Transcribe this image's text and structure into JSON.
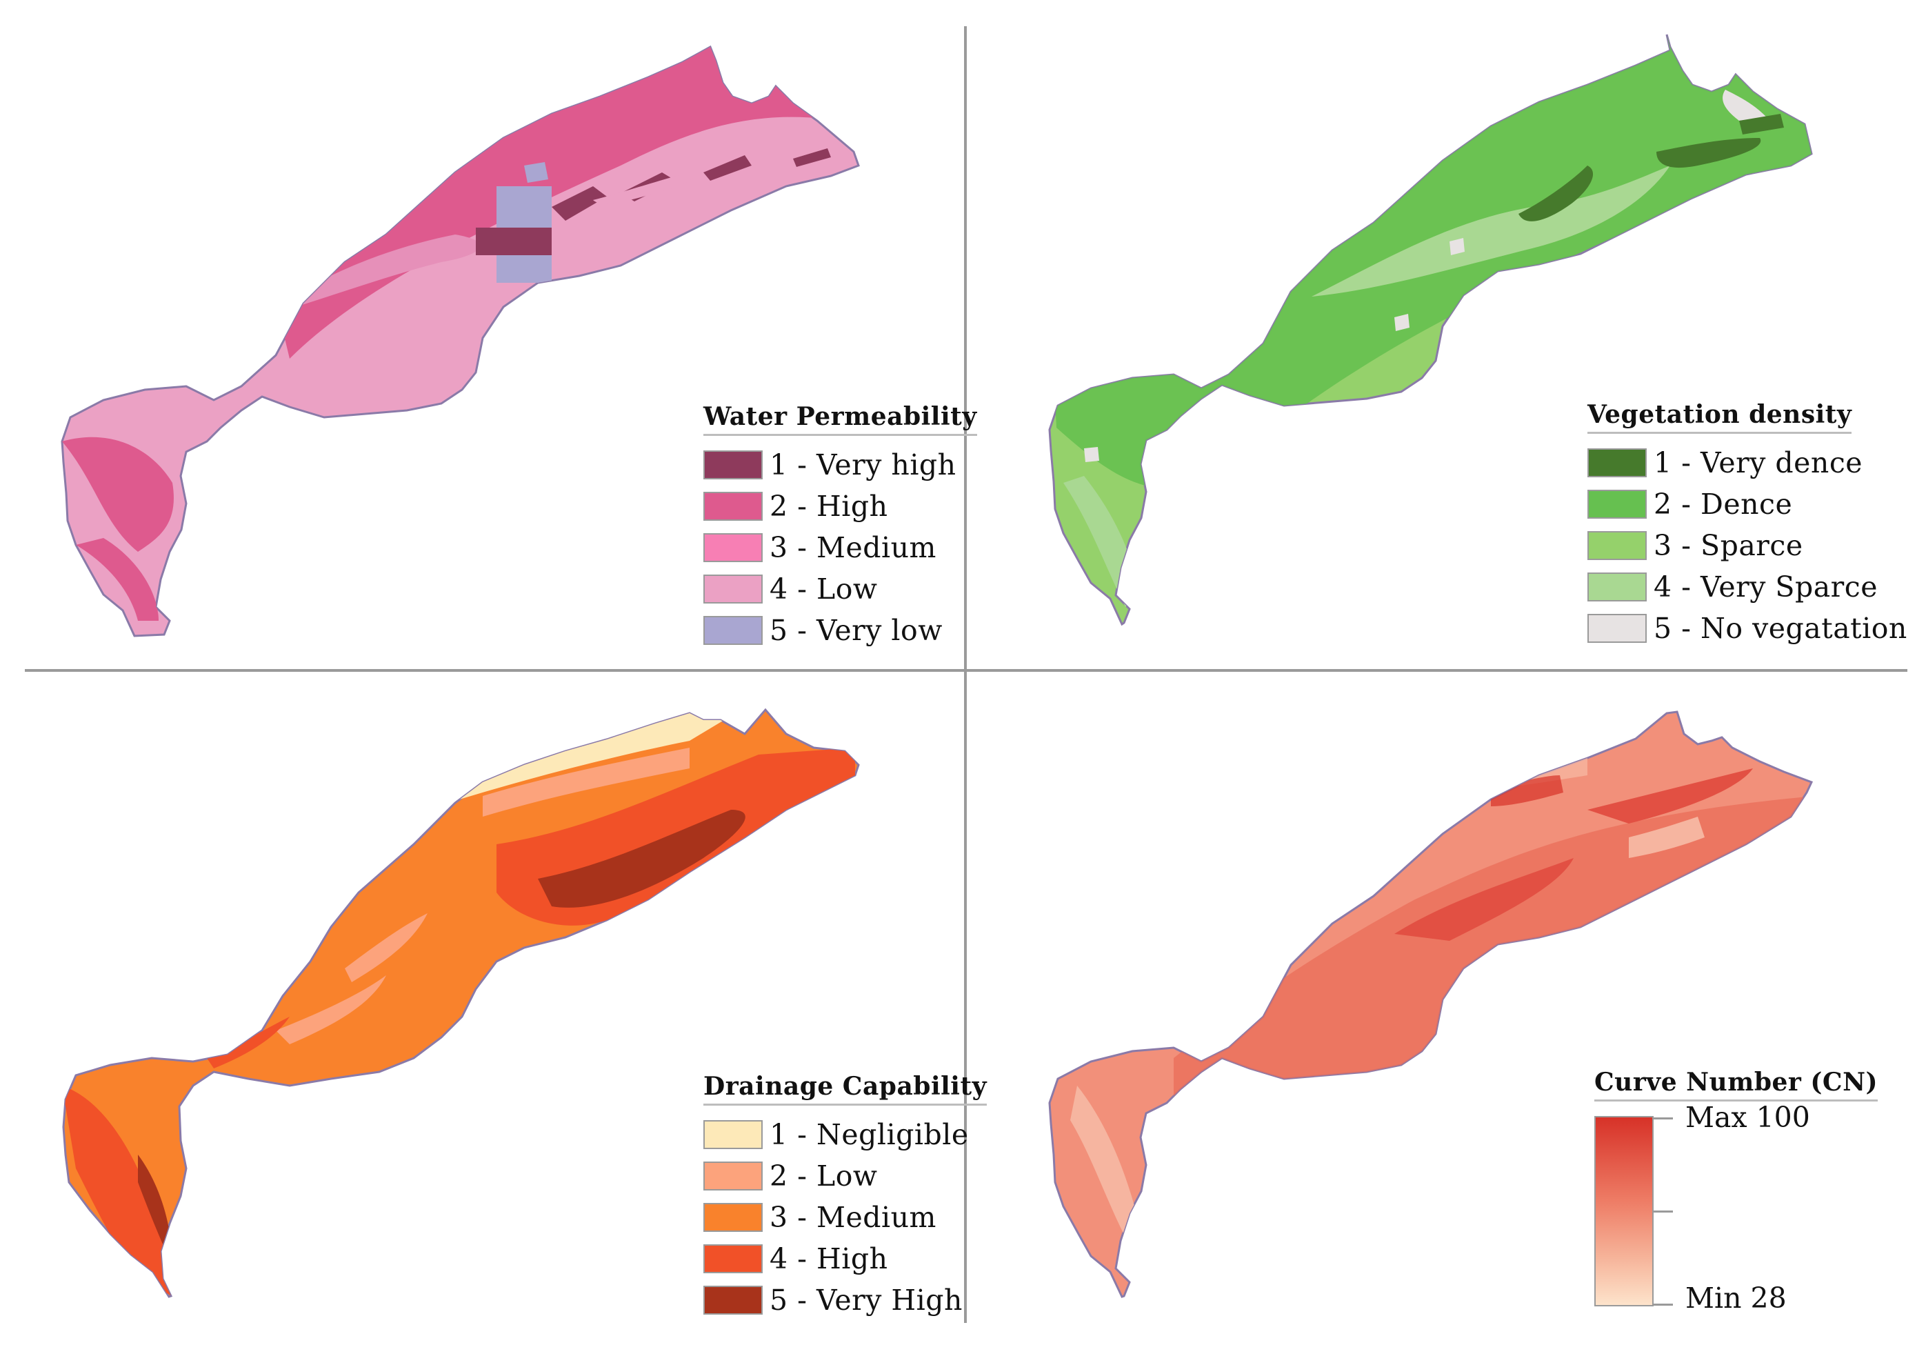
{
  "panels": [
    {
      "legend_title": "Water Permeability",
      "classes": [
        {
          "label": "1 - Very high",
          "color": "#8e3a5c"
        },
        {
          "label": "2 - High",
          "color": "#de5a8e"
        },
        {
          "label": "3 - Medium",
          "color": "#f77fb4"
        },
        {
          "label": "4 - Low",
          "color": "#eba1c4"
        },
        {
          "label": "5 - Very low",
          "color": "#a9a6d1"
        }
      ]
    },
    {
      "legend_title": "Vegetation density",
      "classes": [
        {
          "label": "1 - Very dence",
          "color": "#467a2c"
        },
        {
          "label": "2 - Dence",
          "color": "#66c050"
        },
        {
          "label": "3 - Sparce",
          "color": "#95d16b"
        },
        {
          "label": "4 - Very Sparce",
          "color": "#a9d892"
        },
        {
          "label": "5 - No vegatation",
          "color": "#e7e3e3"
        }
      ]
    },
    {
      "legend_title": "Drainage Capability",
      "classes": [
        {
          "label": "1 - Negligible",
          "color": "#fde9b8"
        },
        {
          "label": "2 - Low",
          "color": "#fca37c"
        },
        {
          "label": "3 - Medium",
          "color": "#f9822c"
        },
        {
          "label": "4 - High",
          "color": "#f15128"
        },
        {
          "label": "5 - Very High",
          "color": "#a8331b"
        }
      ]
    },
    {
      "legend_title": "Curve Number (CN)",
      "ramp": {
        "max_label": "Max 100",
        "min_label": "Min 28",
        "max_color": "#d73228",
        "min_color": "#fde3cb"
      }
    }
  ]
}
